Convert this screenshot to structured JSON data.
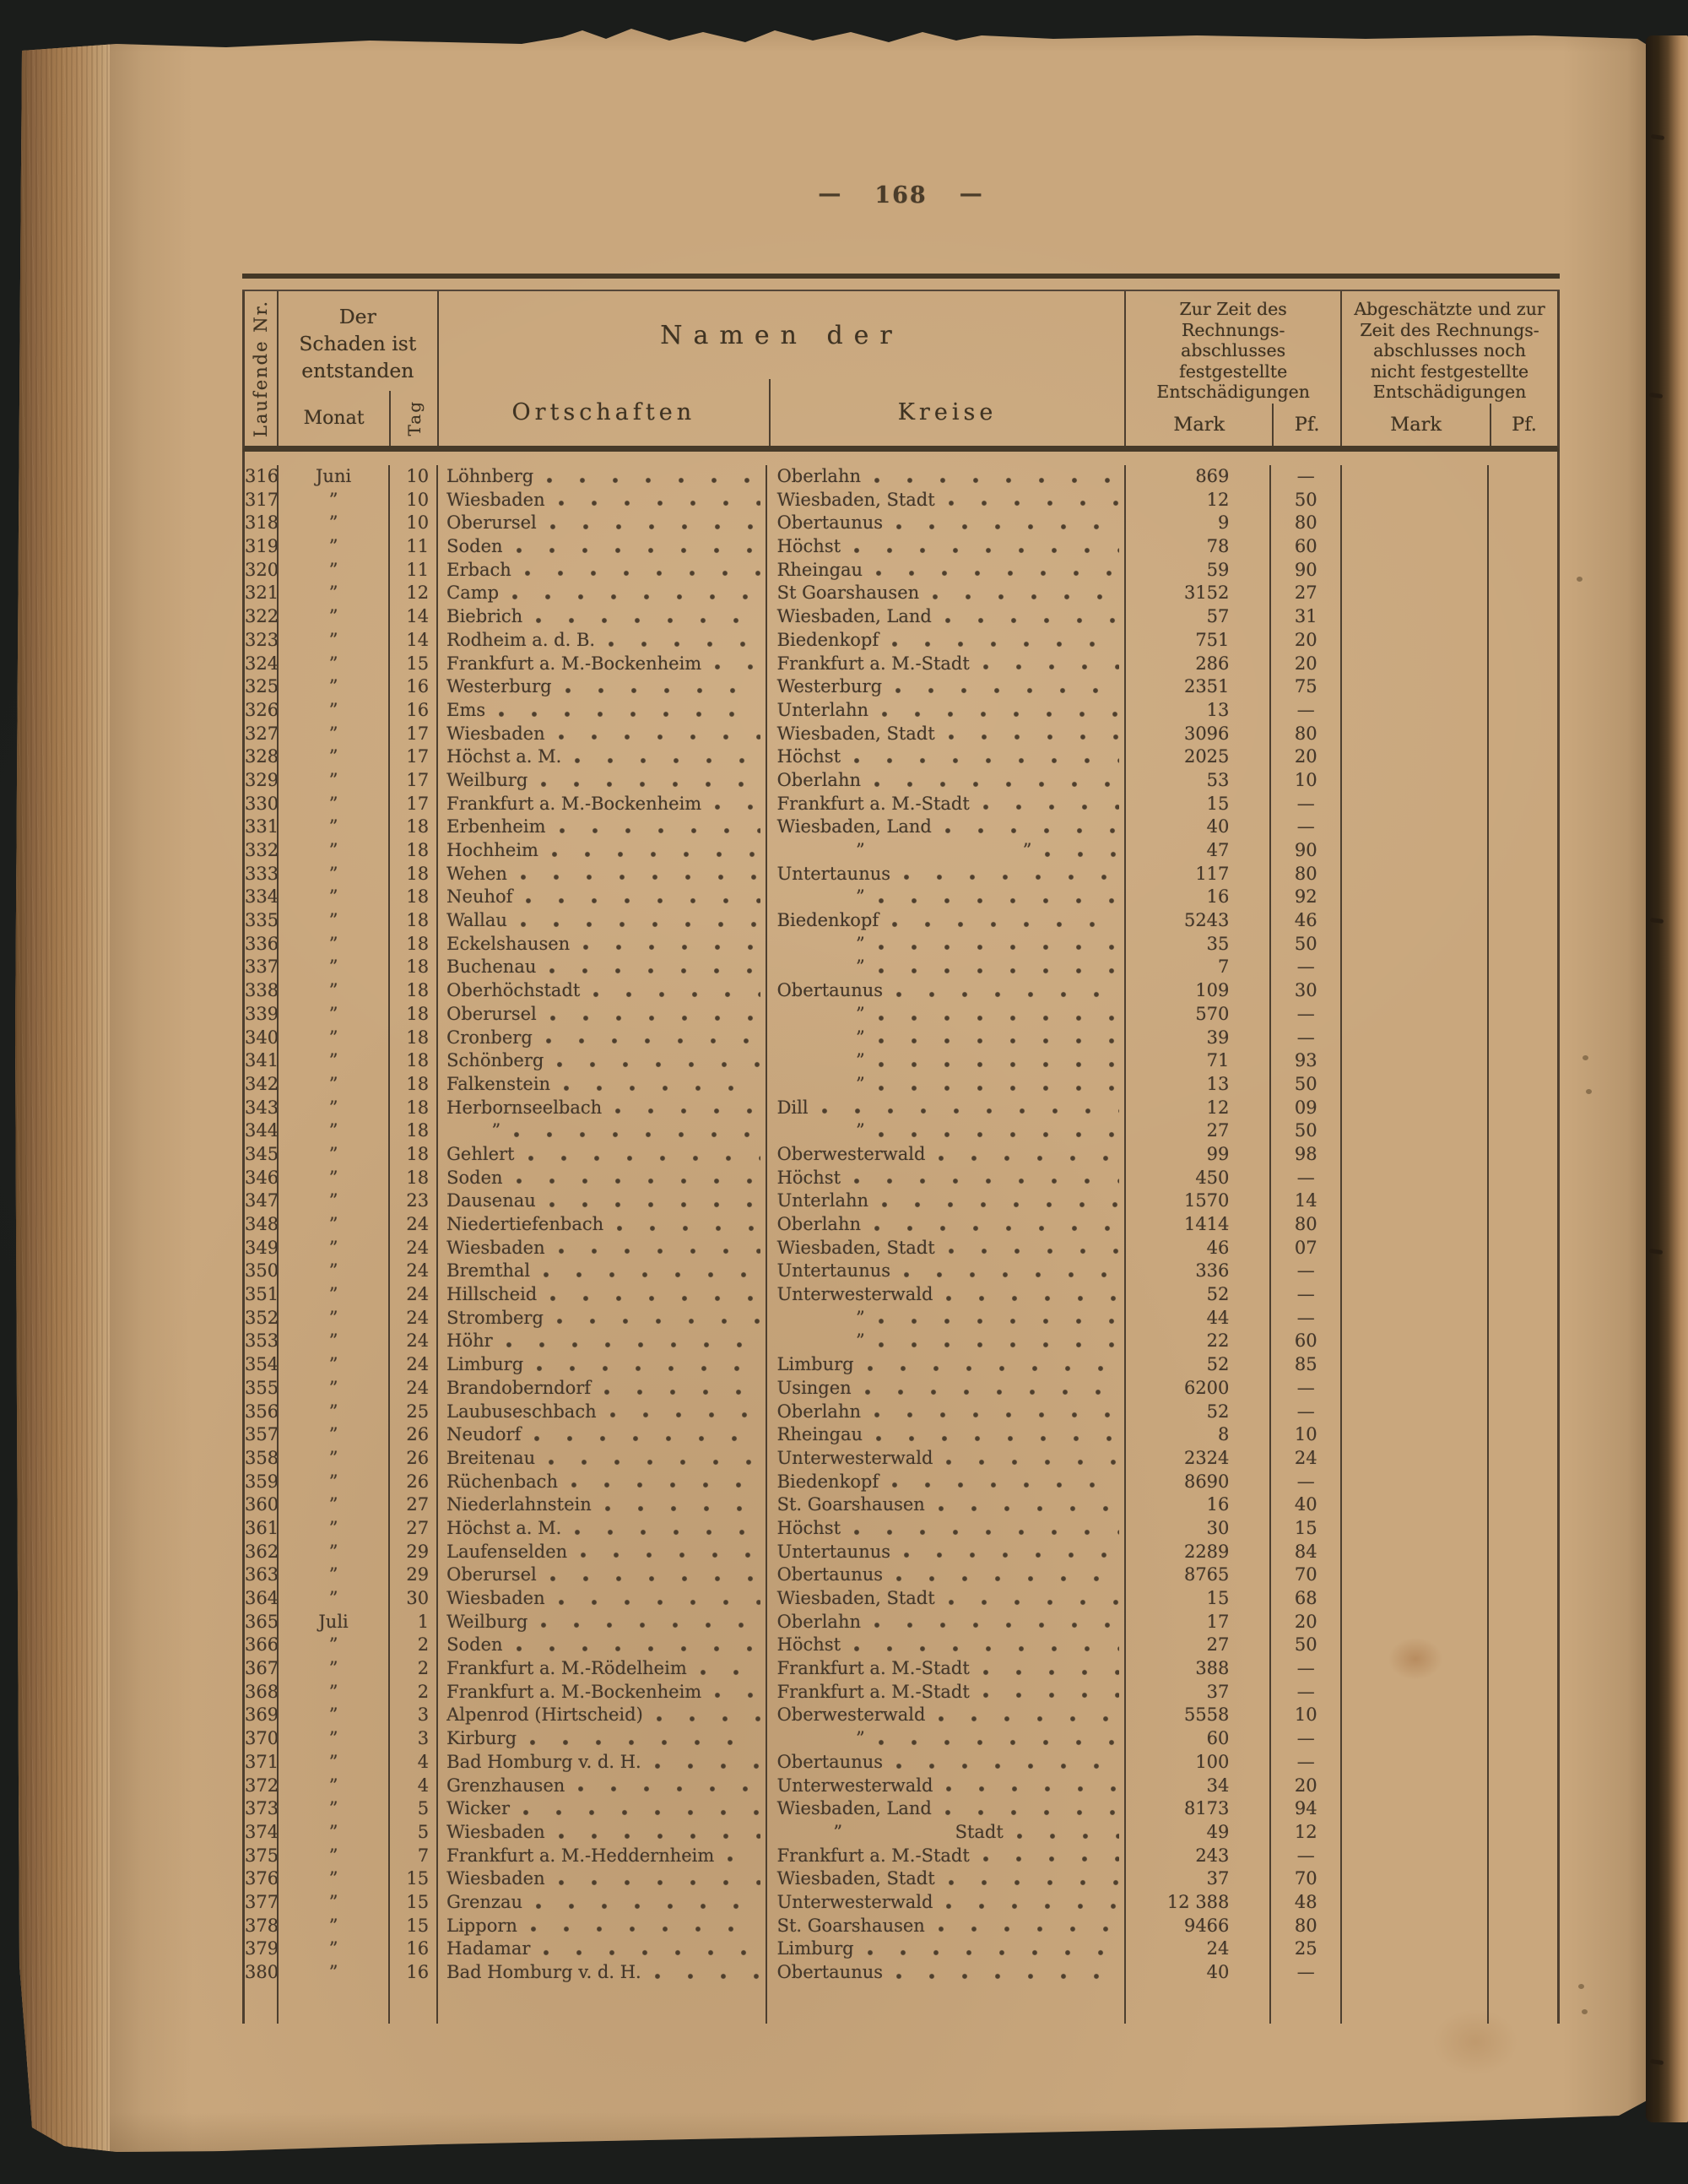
{
  "colors": {
    "paper": "#c9a77d",
    "ink": "#453827",
    "background": "#1b1d1b",
    "binding": "#a37a4e"
  },
  "page": {
    "number": "168",
    "dash": "—"
  },
  "table": {
    "header": {
      "laufende_nr": "Laufende Nr.",
      "damage_group": {
        "line1": "Der",
        "line2": "Schaden ist",
        "line3": "entstanden",
        "monat": "Monat",
        "tag": "Tag"
      },
      "namen_group": {
        "title": "Namen der",
        "ortschaften": "Ortschaften",
        "kreise": "Kreise"
      },
      "settled_group": {
        "lines": [
          "Zur Zeit des",
          "Rechnungs-",
          "abschlusses",
          "festgestellte",
          "Entschädigungen"
        ],
        "mark": "Mark",
        "pf": "Pf."
      },
      "estimated_group": {
        "lines": [
          "Abgeschätzte und zur",
          "Zeit des Rechnungs-",
          "abschlusses noch",
          "nicht festgestellte",
          "Entschädigungen"
        ],
        "mark": "Mark",
        "pf": "Pf."
      }
    },
    "rows": [
      {
        "nr": "316",
        "monat": "Juni",
        "tag": "10",
        "ort": "Löhnberg",
        "kreis": "Oberlahn",
        "mark": "869",
        "pf": "—"
      },
      {
        "nr": "317",
        "monat": "”",
        "tag": "10",
        "ort": "Wiesbaden",
        "kreis": "Wiesbaden, Stadt",
        "mark": "12",
        "pf": "50"
      },
      {
        "nr": "318",
        "monat": "”",
        "tag": "10",
        "ort": "Oberursel",
        "kreis": "Obertaunus",
        "mark": "9",
        "pf": "80"
      },
      {
        "nr": "319",
        "monat": "”",
        "tag": "11",
        "ort": "Soden",
        "kreis": "Höchst",
        "mark": "78",
        "pf": "60"
      },
      {
        "nr": "320",
        "monat": "”",
        "tag": "11",
        "ort": "Erbach",
        "kreis": "Rheingau",
        "mark": "59",
        "pf": "90"
      },
      {
        "nr": "321",
        "monat": "”",
        "tag": "12",
        "ort": "Camp",
        "kreis": "St Goarshausen",
        "mark": "3152",
        "pf": "27"
      },
      {
        "nr": "322",
        "monat": "”",
        "tag": "14",
        "ort": "Biebrich",
        "kreis": "Wiesbaden, Land",
        "mark": "57",
        "pf": "31"
      },
      {
        "nr": "323",
        "monat": "”",
        "tag": "14",
        "ort": "Rodheim a. d. B.",
        "kreis": "Biedenkopf",
        "mark": "751",
        "pf": "20"
      },
      {
        "nr": "324",
        "monat": "”",
        "tag": "15",
        "ort": "Frankfurt a. M.-Bockenheim",
        "kreis": "Frankfurt a. M.-Stadt",
        "mark": "286",
        "pf": "20"
      },
      {
        "nr": "325",
        "monat": "”",
        "tag": "16",
        "ort": "Westerburg",
        "kreis": "Westerburg",
        "mark": "2351",
        "pf": "75"
      },
      {
        "nr": "326",
        "monat": "”",
        "tag": "16",
        "ort": "Ems",
        "kreis": "Unterlahn",
        "mark": "13",
        "pf": "—"
      },
      {
        "nr": "327",
        "monat": "”",
        "tag": "17",
        "ort": "Wiesbaden",
        "kreis": "Wiesbaden, Stadt",
        "mark": "3096",
        "pf": "80"
      },
      {
        "nr": "328",
        "monat": "”",
        "tag": "17",
        "ort": "Höchst a. M.",
        "kreis": "Höchst",
        "mark": "2025",
        "pf": "20"
      },
      {
        "nr": "329",
        "monat": "”",
        "tag": "17",
        "ort": "Weilburg",
        "kreis": "Oberlahn",
        "mark": "53",
        "pf": "10"
      },
      {
        "nr": "330",
        "monat": "”",
        "tag": "17",
        "ort": "Frankfurt a. M.-Bockenheim",
        "kreis": "Frankfurt a. M.-Stadt",
        "mark": "15",
        "pf": "—"
      },
      {
        "nr": "331",
        "monat": "”",
        "tag": "18",
        "ort": "Erbenheim",
        "kreis": "Wiesbaden, Land",
        "mark": "40",
        "pf": "—"
      },
      {
        "nr": "332",
        "monat": "”",
        "tag": "18",
        "ort": "Hochheim",
        "kreis": "              ”                            ”",
        "mark": "47",
        "pf": "90"
      },
      {
        "nr": "333",
        "monat": "”",
        "tag": "18",
        "ort": "Wehen",
        "kreis": "Untertaunus",
        "mark": "117",
        "pf": "80"
      },
      {
        "nr": "334",
        "monat": "”",
        "tag": "18",
        "ort": "Neuhof",
        "kreis": "              ”",
        "mark": "16",
        "pf": "92"
      },
      {
        "nr": "335",
        "monat": "”",
        "tag": "18",
        "ort": "Wallau",
        "kreis": "Biedenkopf",
        "mark": "5243",
        "pf": "46"
      },
      {
        "nr": "336",
        "monat": "”",
        "tag": "18",
        "ort": "Eckelshausen",
        "kreis": "              ”",
        "mark": "35",
        "pf": "50"
      },
      {
        "nr": "337",
        "monat": "”",
        "tag": "18",
        "ort": "Buchenau",
        "kreis": "              ”",
        "mark": "7",
        "pf": "—"
      },
      {
        "nr": "338",
        "monat": "”",
        "tag": "18",
        "ort": "Oberhöchstadt",
        "kreis": "Obertaunus",
        "mark": "109",
        "pf": "30"
      },
      {
        "nr": "339",
        "monat": "”",
        "tag": "18",
        "ort": "Oberursel",
        "kreis": "              ”",
        "mark": "570",
        "pf": "—"
      },
      {
        "nr": "340",
        "monat": "”",
        "tag": "18",
        "ort": "Cronberg",
        "kreis": "              ”",
        "mark": "39",
        "pf": "—"
      },
      {
        "nr": "341",
        "monat": "”",
        "tag": "18",
        "ort": "Schönberg",
        "kreis": "              ”",
        "mark": "71",
        "pf": "93"
      },
      {
        "nr": "342",
        "monat": "”",
        "tag": "18",
        "ort": "Falkenstein",
        "kreis": "              ”",
        "mark": "13",
        "pf": "50"
      },
      {
        "nr": "343",
        "monat": "”",
        "tag": "18",
        "ort": "Herbornseelbach",
        "kreis": "Dill",
        "mark": "12",
        "pf": "09"
      },
      {
        "nr": "344",
        "monat": "”",
        "tag": "18",
        "ort": "        ”",
        "kreis": "              ”",
        "mark": "27",
        "pf": "50"
      },
      {
        "nr": "345",
        "monat": "”",
        "tag": "18",
        "ort": "Gehlert",
        "kreis": "Oberwesterwald",
        "mark": "99",
        "pf": "98"
      },
      {
        "nr": "346",
        "monat": "”",
        "tag": "18",
        "ort": "Soden",
        "kreis": "Höchst",
        "mark": "450",
        "pf": "—"
      },
      {
        "nr": "347",
        "monat": "”",
        "tag": "23",
        "ort": "Dausenau",
        "kreis": "Unterlahn",
        "mark": "1570",
        "pf": "14"
      },
      {
        "nr": "348",
        "monat": "”",
        "tag": "24",
        "ort": "Niedertiefenbach",
        "kreis": "Oberlahn",
        "mark": "1414",
        "pf": "80"
      },
      {
        "nr": "349",
        "monat": "”",
        "tag": "24",
        "ort": "Wiesbaden",
        "kreis": "Wiesbaden, Stadt",
        "mark": "46",
        "pf": "07"
      },
      {
        "nr": "350",
        "monat": "”",
        "tag": "24",
        "ort": "Bremthal",
        "kreis": "Untertaunus",
        "mark": "336",
        "pf": "—"
      },
      {
        "nr": "351",
        "monat": "”",
        "tag": "24",
        "ort": "Hillscheid",
        "kreis": "Unterwesterwald",
        "mark": "52",
        "pf": "—"
      },
      {
        "nr": "352",
        "monat": "”",
        "tag": "24",
        "ort": "Stromberg",
        "kreis": "              ”",
        "mark": "44",
        "pf": "—"
      },
      {
        "nr": "353",
        "monat": "”",
        "tag": "24",
        "ort": "Höhr",
        "kreis": "              ”",
        "mark": "22",
        "pf": "60"
      },
      {
        "nr": "354",
        "monat": "”",
        "tag": "24",
        "ort": "Limburg",
        "kreis": "Limburg",
        "mark": "52",
        "pf": "85"
      },
      {
        "nr": "355",
        "monat": "”",
        "tag": "24",
        "ort": "Brandoberndorf",
        "kreis": "Usingen",
        "mark": "6200",
        "pf": "—"
      },
      {
        "nr": "356",
        "monat": "”",
        "tag": "25",
        "ort": "Laubuseschbach",
        "kreis": "Oberlahn",
        "mark": "52",
        "pf": "—"
      },
      {
        "nr": "357",
        "monat": "”",
        "tag": "26",
        "ort": "Neudorf",
        "kreis": "Rheingau",
        "mark": "8",
        "pf": "10"
      },
      {
        "nr": "358",
        "monat": "”",
        "tag": "26",
        "ort": "Breitenau",
        "kreis": "Unterwesterwald",
        "mark": "2324",
        "pf": "24"
      },
      {
        "nr": "359",
        "monat": "”",
        "tag": "26",
        "ort": "Rüchenbach",
        "kreis": "Biedenkopf",
        "mark": "8690",
        "pf": "—"
      },
      {
        "nr": "360",
        "monat": "”",
        "tag": "27",
        "ort": "Niederlahnstein",
        "kreis": "St. Goarshausen",
        "mark": "16",
        "pf": "40"
      },
      {
        "nr": "361",
        "monat": "”",
        "tag": "27",
        "ort": "Höchst a. M.",
        "kreis": "Höchst",
        "mark": "30",
        "pf": "15"
      },
      {
        "nr": "362",
        "monat": "”",
        "tag": "29",
        "ort": "Laufenselden",
        "kreis": "Untertaunus",
        "mark": "2289",
        "pf": "84"
      },
      {
        "nr": "363",
        "monat": "”",
        "tag": "29",
        "ort": "Oberursel",
        "kreis": "Obertaunus",
        "mark": "8765",
        "pf": "70"
      },
      {
        "nr": "364",
        "monat": "”",
        "tag": "30",
        "ort": "Wiesbaden",
        "kreis": "Wiesbaden, Stadt",
        "mark": "15",
        "pf": "68"
      },
      {
        "nr": "365",
        "monat": "Juli",
        "tag": "1",
        "ort": "Weilburg",
        "kreis": "Oberlahn",
        "mark": "17",
        "pf": "20"
      },
      {
        "nr": "366",
        "monat": "”",
        "tag": "2",
        "ort": "Soden",
        "kreis": "Höchst",
        "mark": "27",
        "pf": "50"
      },
      {
        "nr": "367",
        "monat": "”",
        "tag": "2",
        "ort": "Frankfurt a. M.-Rödelheim",
        "kreis": "Frankfurt a. M.-Stadt",
        "mark": "388",
        "pf": "—"
      },
      {
        "nr": "368",
        "monat": "”",
        "tag": "2",
        "ort": "Frankfurt a. M.-Bockenheim",
        "kreis": "Frankfurt a. M.-Stadt",
        "mark": "37",
        "pf": "—"
      },
      {
        "nr": "369",
        "monat": "”",
        "tag": "3",
        "ort": "Alpenrod (Hirtscheid)",
        "kreis": "Oberwesterwald",
        "mark": "5558",
        "pf": "10"
      },
      {
        "nr": "370",
        "monat": "”",
        "tag": "3",
        "ort": "Kirburg",
        "kreis": "              ”",
        "mark": "60",
        "pf": "—"
      },
      {
        "nr": "371",
        "monat": "”",
        "tag": "4",
        "ort": "Bad Homburg v. d. H.",
        "kreis": "Obertaunus",
        "mark": "100",
        "pf": "—"
      },
      {
        "nr": "372",
        "monat": "”",
        "tag": "4",
        "ort": "Grenzhausen",
        "kreis": "Unterwesterwald",
        "mark": "34",
        "pf": "20"
      },
      {
        "nr": "373",
        "monat": "”",
        "tag": "5",
        "ort": "Wicker",
        "kreis": "Wiesbaden, Land",
        "mark": "8173",
        "pf": "94"
      },
      {
        "nr": "374",
        "monat": "”",
        "tag": "5",
        "ort": "Wiesbaden",
        "kreis": "          ”                    Stadt",
        "mark": "49",
        "pf": "12"
      },
      {
        "nr": "375",
        "monat": "”",
        "tag": "7",
        "ort": "Frankfurt a. M.-Heddernheim",
        "kreis": "Frankfurt a. M.-Stadt",
        "mark": "243",
        "pf": "—"
      },
      {
        "nr": "376",
        "monat": "”",
        "tag": "15",
        "ort": "Wiesbaden",
        "kreis": "Wiesbaden, Stadt",
        "mark": "37",
        "pf": "70"
      },
      {
        "nr": "377",
        "monat": "”",
        "tag": "15",
        "ort": "Grenzau",
        "kreis": "Unterwesterwald",
        "mark": "12 388",
        "pf": "48"
      },
      {
        "nr": "378",
        "monat": "”",
        "tag": "15",
        "ort": "Lipporn",
        "kreis": "St. Goarshausen",
        "mark": "9466",
        "pf": "80"
      },
      {
        "nr": "379",
        "monat": "”",
        "tag": "16",
        "ort": "Hadamar",
        "kreis": "Limburg",
        "mark": "24",
        "pf": "25"
      },
      {
        "nr": "380",
        "monat": "”",
        "tag": "16",
        "ort": "Bad Homburg v. d. H.",
        "kreis": "Obertaunus",
        "mark": "40",
        "pf": "—"
      }
    ]
  }
}
